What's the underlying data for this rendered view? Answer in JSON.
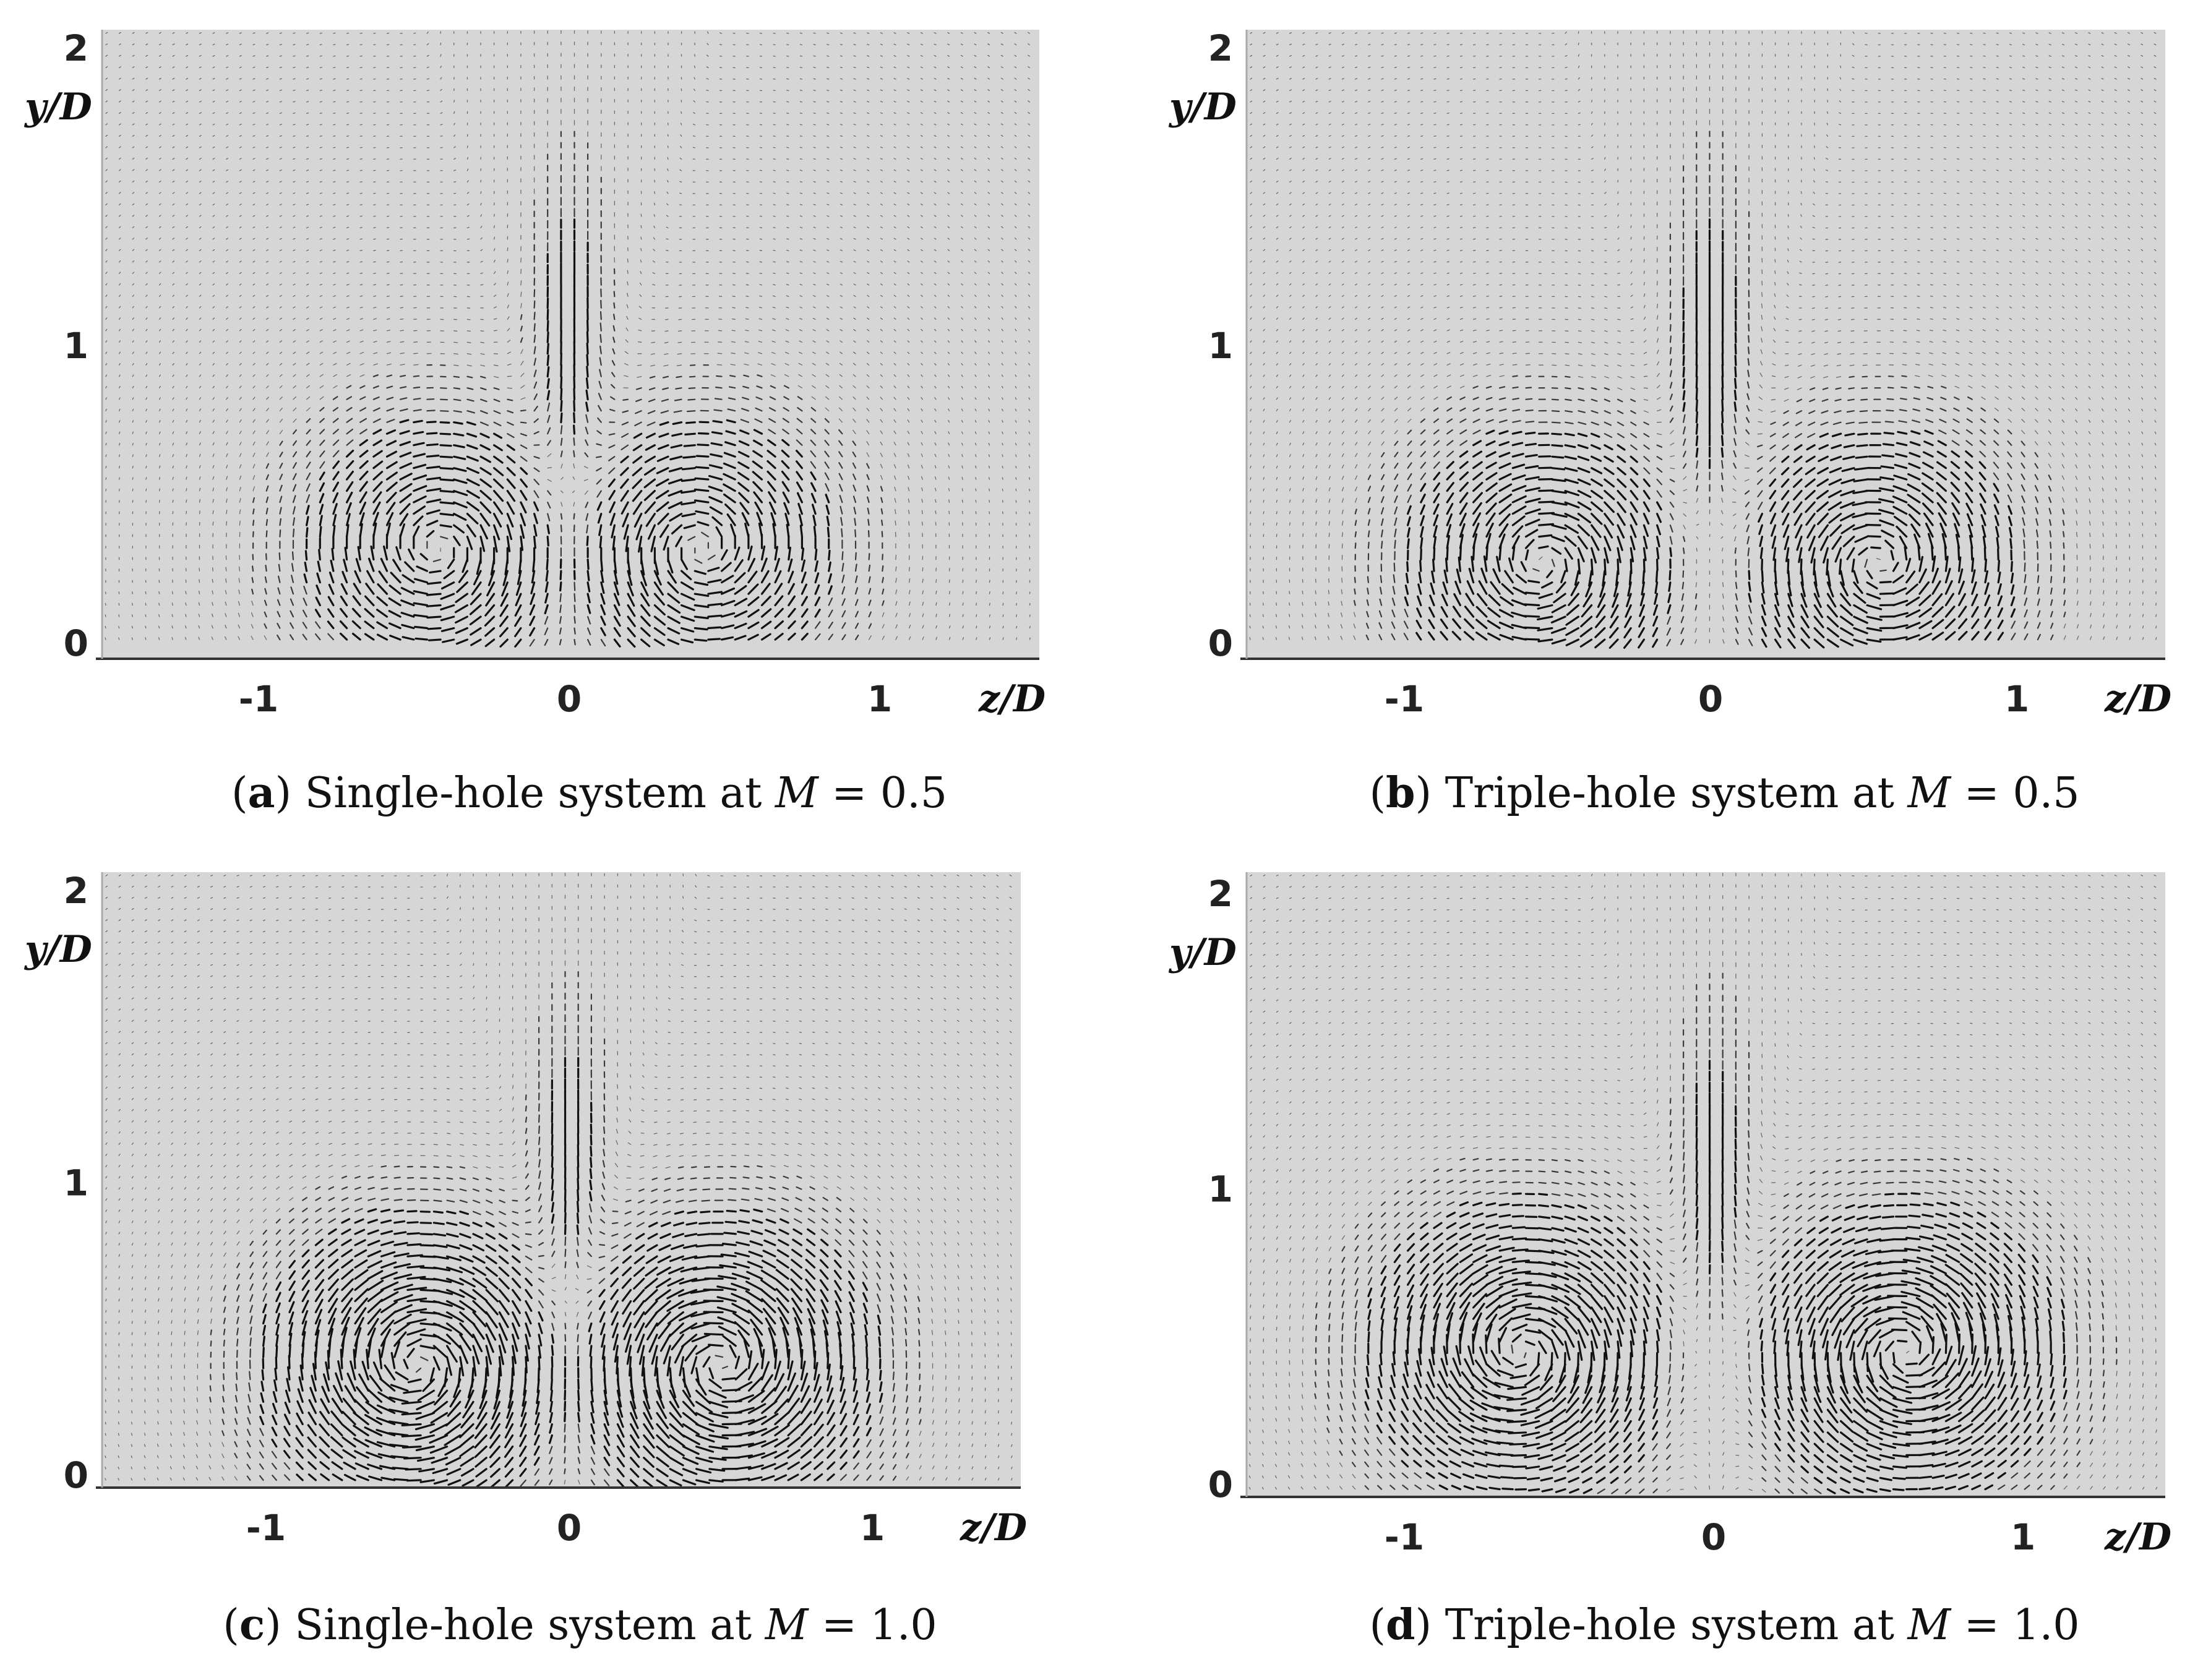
{
  "chart_data": [
    {
      "type": "vector-field",
      "panel": "a",
      "caption": {
        "letter": "a",
        "text": "Single-hole system at ",
        "param": "M",
        "value": " = 0.5"
      },
      "xlabel": "z/D",
      "ylabel": "y/D",
      "xticks": [
        "-1",
        "0",
        "1"
      ],
      "yticks": [
        "0",
        "1",
        "2"
      ],
      "xlim": [
        -1.5,
        1.5
      ],
      "ylim": [
        0,
        2
      ],
      "vortices": [
        {
          "z": -0.42,
          "y": 0.32,
          "rotation": "clockwise",
          "strength": 0.55
        },
        {
          "z": 0.42,
          "y": 0.32,
          "rotation": "counterclockwise",
          "strength": 0.55
        }
      ]
    },
    {
      "type": "vector-field",
      "panel": "b",
      "caption": {
        "letter": "b",
        "text": "Triple-hole system at ",
        "param": "M",
        "value": " = 0.5"
      },
      "xlabel": "z/D",
      "ylabel": "y/D",
      "xticks": [
        "-1",
        "0",
        "1"
      ],
      "yticks": [
        "0",
        "1",
        "2"
      ],
      "xlim": [
        -1.5,
        1.5
      ],
      "ylim": [
        0,
        2
      ],
      "vortices": [
        {
          "z": -0.55,
          "y": 0.27,
          "rotation": "clockwise",
          "strength": 0.6
        },
        {
          "z": 0.55,
          "y": 0.27,
          "rotation": "counterclockwise",
          "strength": 0.6
        }
      ]
    },
    {
      "type": "vector-field",
      "panel": "c",
      "caption": {
        "letter": "c",
        "text": "Single-hole system at ",
        "param": "M",
        "value": " = 1.0"
      },
      "xlabel": "z/D",
      "ylabel": "y/D",
      "xticks": [
        "-1",
        "0",
        "1"
      ],
      "yticks": [
        "0",
        "1",
        "2"
      ],
      "xlim": [
        -1.5,
        1.5
      ],
      "ylim": [
        0,
        2
      ],
      "vortices": [
        {
          "z": -0.5,
          "y": 0.38,
          "rotation": "clockwise",
          "strength": 0.85
        },
        {
          "z": 0.5,
          "y": 0.38,
          "rotation": "counterclockwise",
          "strength": 0.85
        }
      ]
    },
    {
      "type": "vector-field",
      "panel": "d",
      "caption": {
        "letter": "d",
        "text": "Triple-hole system at ",
        "param": "M",
        "value": " = 1.0"
      },
      "xlabel": "z/D",
      "ylabel": "y/D",
      "xticks": [
        "-1",
        "0",
        "1"
      ],
      "yticks": [
        "0",
        "1",
        "2"
      ],
      "xlim": [
        -1.5,
        1.5
      ],
      "ylim": [
        0,
        2
      ],
      "vortices": [
        {
          "z": -0.62,
          "y": 0.45,
          "rotation": "clockwise",
          "strength": 0.8
        },
        {
          "z": 0.62,
          "y": 0.45,
          "rotation": "counterclockwise",
          "strength": 0.8
        }
      ]
    }
  ]
}
